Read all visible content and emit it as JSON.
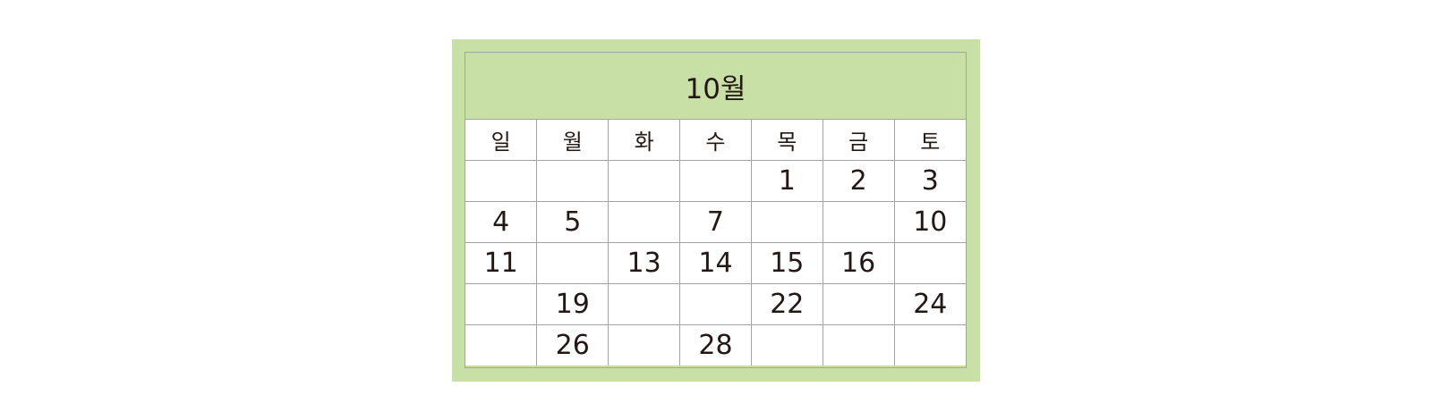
{
  "calendar": {
    "title": "10월",
    "weekdays": [
      "일",
      "월",
      "화",
      "수",
      "목",
      "금",
      "토"
    ],
    "weeks": [
      [
        "",
        "",
        "",
        "",
        "1",
        "2",
        "3"
      ],
      [
        "4",
        "5",
        "",
        "7",
        "",
        "",
        "10"
      ],
      [
        "11",
        "",
        "13",
        "14",
        "15",
        "16",
        ""
      ],
      [
        "",
        "19",
        "",
        "",
        "22",
        "",
        "24"
      ],
      [
        "",
        "26",
        "",
        "28",
        "",
        "",
        ""
      ]
    ],
    "colors": {
      "frame": "#c8dfa6",
      "grid_line": "#a3a3a3",
      "text": "#231815",
      "sunday": "#d4177a",
      "saturday": "#1b8fcf"
    }
  }
}
